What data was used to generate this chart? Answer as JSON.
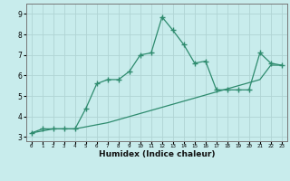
{
  "title": "",
  "xlabel": "Humidex (Indice chaleur)",
  "x_values": [
    0,
    1,
    2,
    3,
    4,
    5,
    6,
    7,
    8,
    9,
    10,
    11,
    12,
    13,
    14,
    15,
    16,
    17,
    18,
    19,
    20,
    21,
    22,
    23
  ],
  "y_line1": [
    3.2,
    3.4,
    3.4,
    3.4,
    3.4,
    4.4,
    5.6,
    5.8,
    5.8,
    6.2,
    7.0,
    7.1,
    8.85,
    8.2,
    7.5,
    6.6,
    6.7,
    5.3,
    5.3,
    5.3,
    5.3,
    7.1,
    6.6,
    6.5
  ],
  "y_line2": [
    3.2,
    3.3,
    3.4,
    3.4,
    3.4,
    3.5,
    3.6,
    3.7,
    3.85,
    4.0,
    4.15,
    4.3,
    4.45,
    4.6,
    4.75,
    4.9,
    5.05,
    5.2,
    5.35,
    5.5,
    5.65,
    5.8,
    6.5,
    6.5
  ],
  "line_color": "#2e8b6e",
  "bg_color": "#c8ecec",
  "grid_color": "#b0d4d4",
  "ylim": [
    2.8,
    9.5
  ],
  "xlim": [
    -0.5,
    23.5
  ],
  "yticks": [
    3,
    4,
    5,
    6,
    7,
    8,
    9
  ],
  "xticks": [
    0,
    1,
    2,
    3,
    4,
    5,
    6,
    7,
    8,
    9,
    10,
    11,
    12,
    13,
    14,
    15,
    16,
    17,
    18,
    19,
    20,
    21,
    22,
    23
  ]
}
